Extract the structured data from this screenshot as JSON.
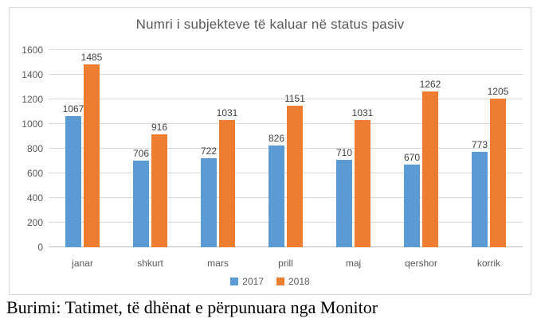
{
  "chart_data": {
    "type": "bar",
    "title": "Numri i subjekteve të kaluar në status pasiv",
    "categories": [
      "janar",
      "shkurt",
      "mars",
      "prill",
      "maj",
      "qershor",
      "korrik"
    ],
    "series": [
      {
        "name": "2017",
        "color": "#5b9bd5",
        "values": [
          1067,
          706,
          722,
          826,
          710,
          670,
          773
        ]
      },
      {
        "name": "2018",
        "color": "#ed7d31",
        "values": [
          1485,
          916,
          1031,
          1151,
          1031,
          1262,
          1205
        ]
      }
    ],
    "ylim": [
      0,
      1600
    ],
    "yticks": [
      0,
      200,
      400,
      600,
      800,
      1000,
      1200,
      1400,
      1600
    ],
    "xlabel": "",
    "ylabel": "",
    "grid": true,
    "legend_position": "bottom",
    "data_labels": true
  },
  "caption": "Burimi: Tatimet, të dhënat e përpunuara nga Monitor",
  "colors": {
    "series_2017": "#5b9bd5",
    "series_2018": "#ed7d31",
    "gridline": "#d9d9d9",
    "axis_line": "#bfbfbf",
    "chart_border": "#d9d9d9",
    "title_text": "#595959",
    "tick_text": "#595959",
    "value_label_text": "#404040",
    "caption_text": "#000000"
  }
}
